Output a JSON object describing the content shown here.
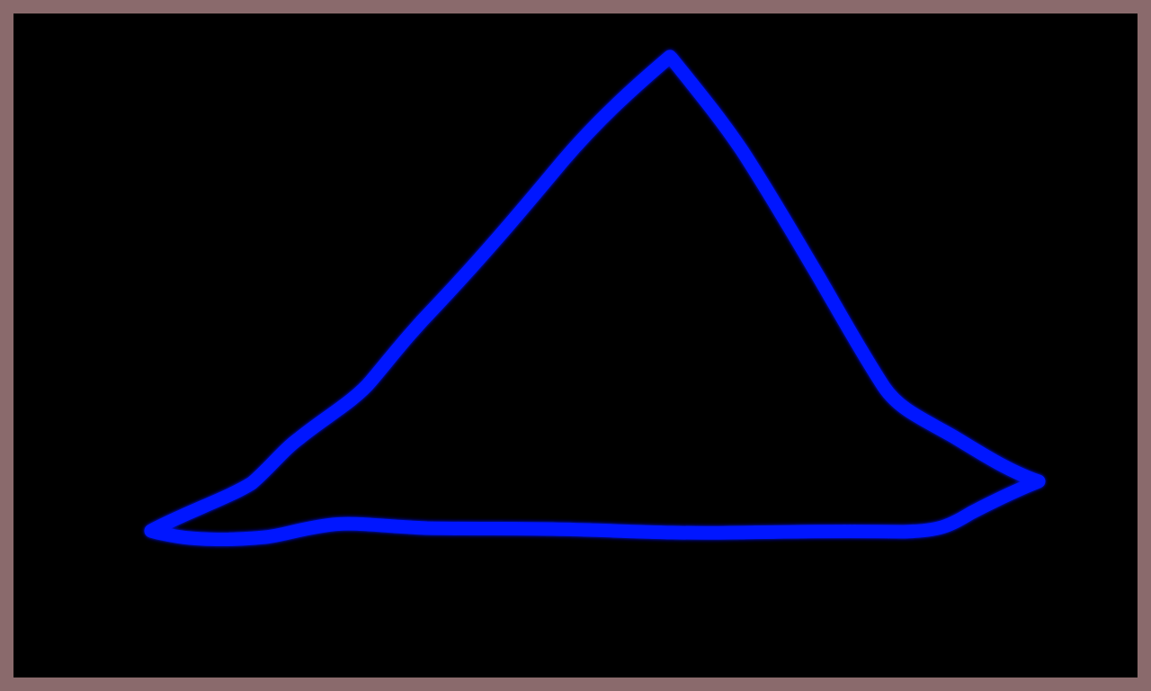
{
  "frame": {
    "border_color": "#8a6a6c"
  },
  "canvas": {
    "background_color": "#000000",
    "stroke": {
      "shape": "hand-drawn triangle",
      "color": "#0014ff",
      "glow_color": "#0a1fff"
    }
  }
}
